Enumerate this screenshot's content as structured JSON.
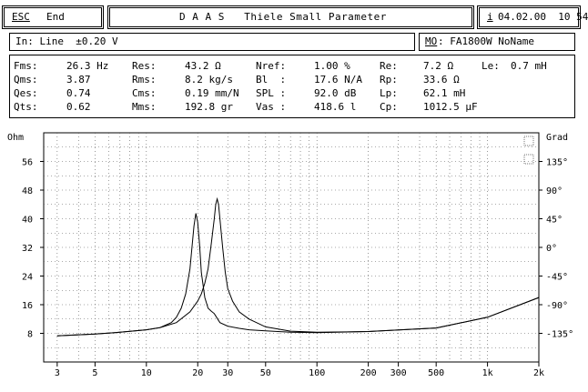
{
  "header": {
    "esc_key": "ESC",
    "end_label": "End",
    "title": "D A A S   Thiele Small Parameter",
    "info_key": "i",
    "datetime": "04.02.00  10 54"
  },
  "status": {
    "input": "In: Line  ±0.20 V",
    "memory_key": "MO",
    "memory_value": ": FA1800W NoName"
  },
  "params": {
    "r1": {
      "l1": "Fms:",
      "v1": "26.3 Hz",
      "l2": "Res:",
      "v2": "43.2 Ω",
      "l3": "Nref:",
      "v3": "1.00 %",
      "l4": "Re:",
      "v4": "7.2 Ω",
      "l5": "Le:",
      "v5": "0.7 mH"
    },
    "r2": {
      "l1": "Qms:",
      "v1": "3.87",
      "l2": "Rms:",
      "v2": "8.2 kg/s",
      "l3": "Bl  :",
      "v3": "17.6 N/A",
      "l4": "Rp:",
      "v4": "33.6 Ω"
    },
    "r3": {
      "l1": "Qes:",
      "v1": "0.74",
      "l2": "Cms:",
      "v2": "0.19 mm/N",
      "l3": "SPL :",
      "v3": "92.0 dB",
      "l4": "Lp:",
      "v4": "62.1 mH"
    },
    "r4": {
      "l1": "Qts:",
      "v1": "0.62",
      "l2": "Mms:",
      "v2": "192.8 gr",
      "l3": "Vas :",
      "v3": "418.6 l",
      "l4": "Cp:",
      "v4": "1012.5 μF"
    }
  },
  "chart_data": {
    "type": "line",
    "x_scale": "log",
    "xlim": [
      2.5,
      2000
    ],
    "y_left": {
      "label": "Ohm",
      "ticks": [
        "56",
        "48",
        "40",
        "32",
        "24",
        "16",
        "8"
      ],
      "lim": [
        0,
        64
      ]
    },
    "y_right": {
      "label": "Grad",
      "ticks": [
        "135°",
        "90°",
        "45°",
        "0°",
        "-45°",
        "-90°",
        "-135°"
      ],
      "lim": [
        -180,
        180
      ]
    },
    "x_ticks": [
      "3",
      "5",
      "10",
      "20",
      "30",
      "50",
      "100",
      "200",
      "300",
      "500",
      "1k",
      "2k"
    ],
    "x_tick_values": [
      3,
      5,
      10,
      20,
      30,
      50,
      100,
      200,
      300,
      500,
      1000,
      2000
    ],
    "grid": true,
    "series": [
      {
        "x": [
          3,
          5,
          7,
          10,
          12,
          14,
          15,
          16,
          17,
          18,
          18.5,
          19,
          19.5,
          20,
          20.5,
          21,
          22,
          23,
          24,
          25,
          27,
          30,
          35,
          40,
          50,
          70,
          100,
          200,
          500,
          1000,
          2000
        ],
        "y": [
          7.3,
          7.8,
          8.3,
          9.0,
          9.6,
          11,
          12.5,
          15,
          19,
          26,
          32,
          38,
          41.5,
          39,
          33,
          25,
          18,
          15,
          14.2,
          13.5,
          11,
          10,
          9.4,
          9.0,
          8.7,
          8.3,
          8.2,
          8.5,
          9.5,
          12.5,
          18
        ]
      },
      {
        "x": [
          3,
          5,
          7,
          10,
          12,
          15,
          18,
          20,
          21,
          22,
          23,
          24,
          25,
          25.5,
          26,
          26.5,
          27,
          28,
          29,
          30,
          32,
          35,
          40,
          50,
          70,
          100,
          200,
          500,
          1000,
          2000
        ],
        "y": [
          7.3,
          7.8,
          8.3,
          9.0,
          9.6,
          11,
          14,
          17,
          19,
          22,
          26,
          33,
          40,
          44,
          45.5,
          44,
          40,
          32,
          25,
          20.5,
          17,
          14,
          12,
          9.8,
          8.6,
          8.3,
          8.5,
          9.5,
          12.5,
          18
        ]
      }
    ]
  }
}
